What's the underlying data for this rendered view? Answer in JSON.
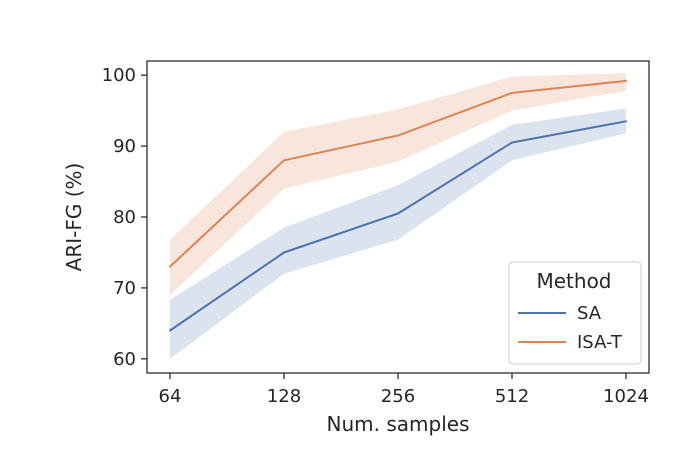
{
  "chart_data": {
    "type": "line",
    "xlabel": "Num. samples",
    "ylabel": "ARI-FG (%)",
    "x_scale": "log2",
    "categories": [
      "64",
      "128",
      "256",
      "512",
      "1024"
    ],
    "x": [
      64,
      128,
      256,
      512,
      1024
    ],
    "ylim": [
      58,
      102
    ],
    "yticks": [
      60,
      70,
      80,
      90,
      100
    ],
    "grid": false,
    "legend": {
      "title": "Method",
      "placement": "bottom-right"
    },
    "series": [
      {
        "name": "SA",
        "color": "#4c72b0",
        "values": [
          64.0,
          75.0,
          80.5,
          90.5,
          93.5
        ],
        "lower": [
          60.0,
          72.0,
          76.8,
          88.0,
          91.8
        ],
        "upper": [
          68.3,
          78.5,
          84.5,
          93.0,
          95.3
        ]
      },
      {
        "name": "ISA-T",
        "color": "#dd8452",
        "values": [
          73.0,
          88.0,
          91.5,
          97.5,
          99.2
        ],
        "lower": [
          69.0,
          84.0,
          87.8,
          95.0,
          97.8
        ],
        "upper": [
          76.8,
          92.0,
          95.2,
          99.8,
          100.3
        ]
      }
    ]
  }
}
